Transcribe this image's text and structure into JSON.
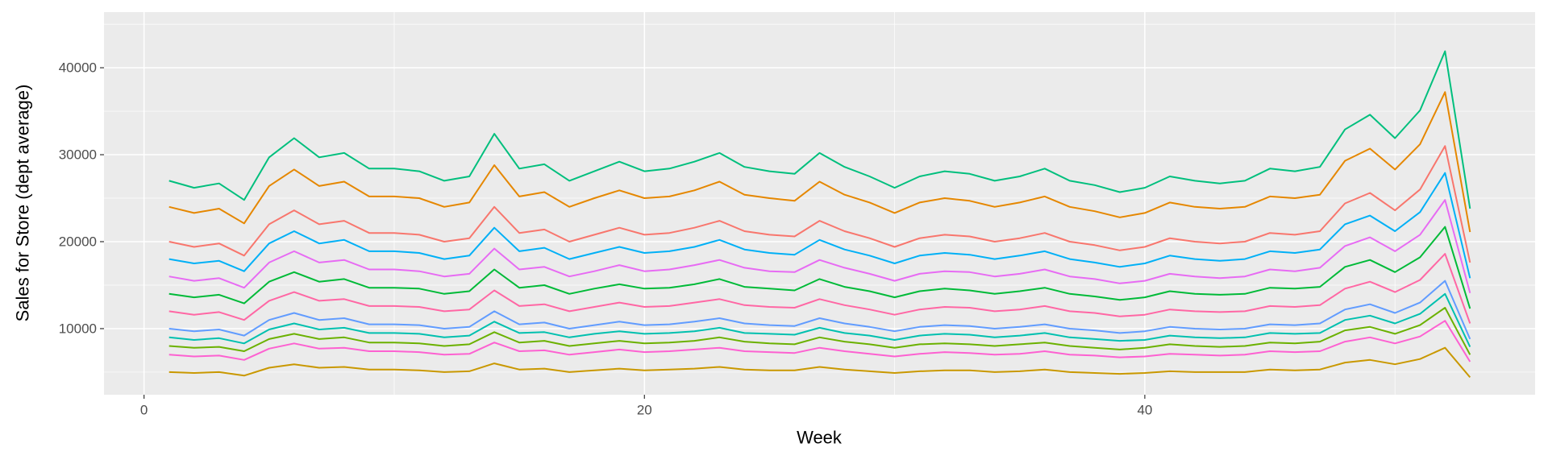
{
  "chart_data": {
    "type": "line",
    "x_label": "Week",
    "y_label": "Sales for Store (dept average)",
    "x": [
      1,
      2,
      3,
      4,
      5,
      6,
      7,
      8,
      9,
      10,
      11,
      12,
      13,
      14,
      15,
      16,
      17,
      18,
      19,
      20,
      21,
      22,
      23,
      24,
      25,
      26,
      27,
      28,
      29,
      30,
      31,
      32,
      33,
      34,
      35,
      36,
      37,
      38,
      39,
      40,
      41,
      42,
      43,
      44,
      45,
      46,
      47,
      48,
      49,
      50,
      51,
      52,
      53
    ],
    "xlim": [
      -1.6,
      55.6
    ],
    "xticks": [
      0,
      20,
      40
    ],
    "x_minor_ticks": [
      10,
      30,
      50
    ],
    "ylim": [
      2400,
      46400
    ],
    "yticks": [
      10000,
      20000,
      30000,
      40000
    ],
    "y_minor_ticks": [
      5000,
      15000,
      25000,
      35000,
      45000
    ],
    "grid": true,
    "legend": false,
    "series": [
      {
        "color": "#00BF7D",
        "values": [
          27000,
          26200,
          26700,
          24800,
          29700,
          31900,
          29700,
          30200,
          28400,
          28400,
          28100,
          27000,
          27500,
          32400,
          28400,
          28900,
          27000,
          28100,
          29200,
          28100,
          28400,
          29200,
          30200,
          28600,
          28100,
          27800,
          30200,
          28600,
          27500,
          26200,
          27500,
          28100,
          27800,
          27000,
          27500,
          28400,
          27000,
          26500,
          25700,
          26200,
          27500,
          27000,
          26700,
          27000,
          28400,
          28100,
          28600,
          32900,
          34600,
          31900,
          35100,
          41900,
          23800
        ]
      },
      {
        "color": "#E58700",
        "values": [
          24000,
          23300,
          23800,
          22100,
          26400,
          28300,
          26400,
          26900,
          25200,
          25200,
          25000,
          24000,
          24500,
          28800,
          25200,
          25700,
          24000,
          25000,
          25900,
          25000,
          25200,
          25900,
          26900,
          25400,
          25000,
          24700,
          26900,
          25400,
          24500,
          23300,
          24500,
          25000,
          24700,
          24000,
          24500,
          25200,
          24000,
          23500,
          22800,
          23300,
          24500,
          24000,
          23800,
          24000,
          25200,
          25000,
          25400,
          29300,
          30700,
          28300,
          31200,
          37200,
          21100
        ]
      },
      {
        "color": "#F8766D",
        "values": [
          20000,
          19400,
          19800,
          18400,
          22000,
          23600,
          22000,
          22400,
          21000,
          21000,
          20800,
          20000,
          20400,
          24000,
          21000,
          21400,
          20000,
          20800,
          21600,
          20800,
          21000,
          21600,
          22400,
          21200,
          20800,
          20600,
          22400,
          21200,
          20400,
          19400,
          20400,
          20800,
          20600,
          20000,
          20400,
          21000,
          20000,
          19600,
          19000,
          19400,
          20400,
          20000,
          19800,
          20000,
          21000,
          20800,
          21200,
          24400,
          25600,
          23600,
          26000,
          31000,
          17600
        ]
      },
      {
        "color": "#00B0F6",
        "values": [
          18000,
          17500,
          17800,
          16600,
          19800,
          21200,
          19800,
          20200,
          18900,
          18900,
          18700,
          18000,
          18400,
          21600,
          18900,
          19300,
          18000,
          18700,
          19400,
          18700,
          18900,
          19400,
          20200,
          19100,
          18700,
          18500,
          20200,
          19100,
          18400,
          17500,
          18400,
          18700,
          18500,
          18000,
          18400,
          18900,
          18000,
          17600,
          17100,
          17500,
          18400,
          18000,
          17800,
          18000,
          18900,
          18700,
          19100,
          22000,
          23000,
          21200,
          23400,
          27900,
          15800
        ]
      },
      {
        "color": "#E76BF3",
        "values": [
          16000,
          15500,
          15800,
          14700,
          17600,
          18900,
          17600,
          17900,
          16800,
          16800,
          16600,
          16000,
          16300,
          19200,
          16800,
          17100,
          16000,
          16600,
          17300,
          16600,
          16800,
          17300,
          17900,
          17000,
          16600,
          16500,
          17900,
          17000,
          16300,
          15500,
          16300,
          16600,
          16500,
          16000,
          16300,
          16800,
          16000,
          15700,
          15200,
          15500,
          16300,
          16000,
          15800,
          16000,
          16800,
          16600,
          17000,
          19500,
          20500,
          18900,
          20800,
          24800,
          14100
        ]
      },
      {
        "color": "#00BA38",
        "values": [
          14000,
          13600,
          13900,
          12900,
          15400,
          16500,
          15400,
          15700,
          14700,
          14700,
          14600,
          14000,
          14300,
          16800,
          14700,
          15000,
          14000,
          14600,
          15100,
          14600,
          14700,
          15100,
          15700,
          14800,
          14600,
          14400,
          15700,
          14800,
          14300,
          13600,
          14300,
          14600,
          14400,
          14000,
          14300,
          14700,
          14000,
          13700,
          13300,
          13600,
          14300,
          14000,
          13900,
          14000,
          14700,
          14600,
          14800,
          17100,
          17900,
          16500,
          18200,
          21700,
          12300
        ]
      },
      {
        "color": "#FF67A4",
        "values": [
          12000,
          11600,
          11900,
          11000,
          13200,
          14200,
          13200,
          13400,
          12600,
          12600,
          12500,
          12000,
          12200,
          14400,
          12600,
          12800,
          12000,
          12500,
          13000,
          12500,
          12600,
          13000,
          13400,
          12700,
          12500,
          12400,
          13400,
          12700,
          12200,
          11600,
          12200,
          12500,
          12400,
          12000,
          12200,
          12600,
          12000,
          11800,
          11400,
          11600,
          12200,
          12000,
          11900,
          12000,
          12600,
          12500,
          12700,
          14600,
          15400,
          14200,
          15600,
          18600,
          10600
        ]
      },
      {
        "color": "#619CFF",
        "values": [
          10000,
          9700,
          9900,
          9200,
          11000,
          11800,
          11000,
          11200,
          10500,
          10500,
          10400,
          10000,
          10200,
          12000,
          10500,
          10700,
          10000,
          10400,
          10800,
          10400,
          10500,
          10800,
          11200,
          10600,
          10400,
          10300,
          11200,
          10600,
          10200,
          9700,
          10200,
          10400,
          10300,
          10000,
          10200,
          10500,
          10000,
          9800,
          9500,
          9700,
          10200,
          10000,
          9900,
          10000,
          10500,
          10400,
          10600,
          12200,
          12800,
          11800,
          13000,
          15500,
          8800
        ]
      },
      {
        "color": "#00C0AF",
        "values": [
          9000,
          8700,
          8900,
          8300,
          9900,
          10600,
          9900,
          10100,
          9500,
          9500,
          9400,
          9000,
          9200,
          10800,
          9500,
          9600,
          9000,
          9400,
          9700,
          9400,
          9500,
          9700,
          10100,
          9500,
          9400,
          9300,
          10100,
          9500,
          9200,
          8700,
          9200,
          9400,
          9300,
          9000,
          9200,
          9500,
          9000,
          8800,
          8600,
          8700,
          9200,
          9000,
          8900,
          9000,
          9500,
          9400,
          9500,
          11000,
          11500,
          10600,
          11700,
          14000,
          7900
        ]
      },
      {
        "color": "#6BB100",
        "values": [
          8000,
          7800,
          7900,
          7400,
          8800,
          9400,
          8800,
          9000,
          8400,
          8400,
          8300,
          8000,
          8200,
          9600,
          8400,
          8600,
          8000,
          8300,
          8600,
          8300,
          8400,
          8600,
          9000,
          8500,
          8300,
          8200,
          9000,
          8500,
          8200,
          7800,
          8200,
          8300,
          8200,
          8000,
          8200,
          8400,
          8000,
          7800,
          7600,
          7800,
          8200,
          8000,
          7900,
          8000,
          8400,
          8300,
          8500,
          9800,
          10200,
          9400,
          10400,
          12400,
          7000
        ]
      },
      {
        "color": "#FD61D1",
        "values": [
          7000,
          6800,
          6900,
          6400,
          7700,
          8300,
          7700,
          7800,
          7400,
          7400,
          7300,
          7000,
          7100,
          8400,
          7400,
          7500,
          7000,
          7300,
          7600,
          7300,
          7400,
          7600,
          7800,
          7400,
          7300,
          7200,
          7800,
          7400,
          7100,
          6800,
          7100,
          7300,
          7200,
          7000,
          7100,
          7400,
          7000,
          6900,
          6700,
          6800,
          7100,
          7000,
          6900,
          7000,
          7400,
          7300,
          7400,
          8500,
          9000,
          8300,
          9100,
          10900,
          6200
        ]
      },
      {
        "color": "#C99800",
        "values": [
          5000,
          4900,
          5000,
          4600,
          5500,
          5900,
          5500,
          5600,
          5300,
          5300,
          5200,
          5000,
          5100,
          6000,
          5300,
          5400,
          5000,
          5200,
          5400,
          5200,
          5300,
          5400,
          5600,
          5300,
          5200,
          5200,
          5600,
          5300,
          5100,
          4900,
          5100,
          5200,
          5200,
          5000,
          5100,
          5300,
          5000,
          4900,
          4800,
          4900,
          5100,
          5000,
          5000,
          5000,
          5300,
          5200,
          5300,
          6100,
          6400,
          5900,
          6500,
          7800,
          4400
        ]
      }
    ]
  }
}
